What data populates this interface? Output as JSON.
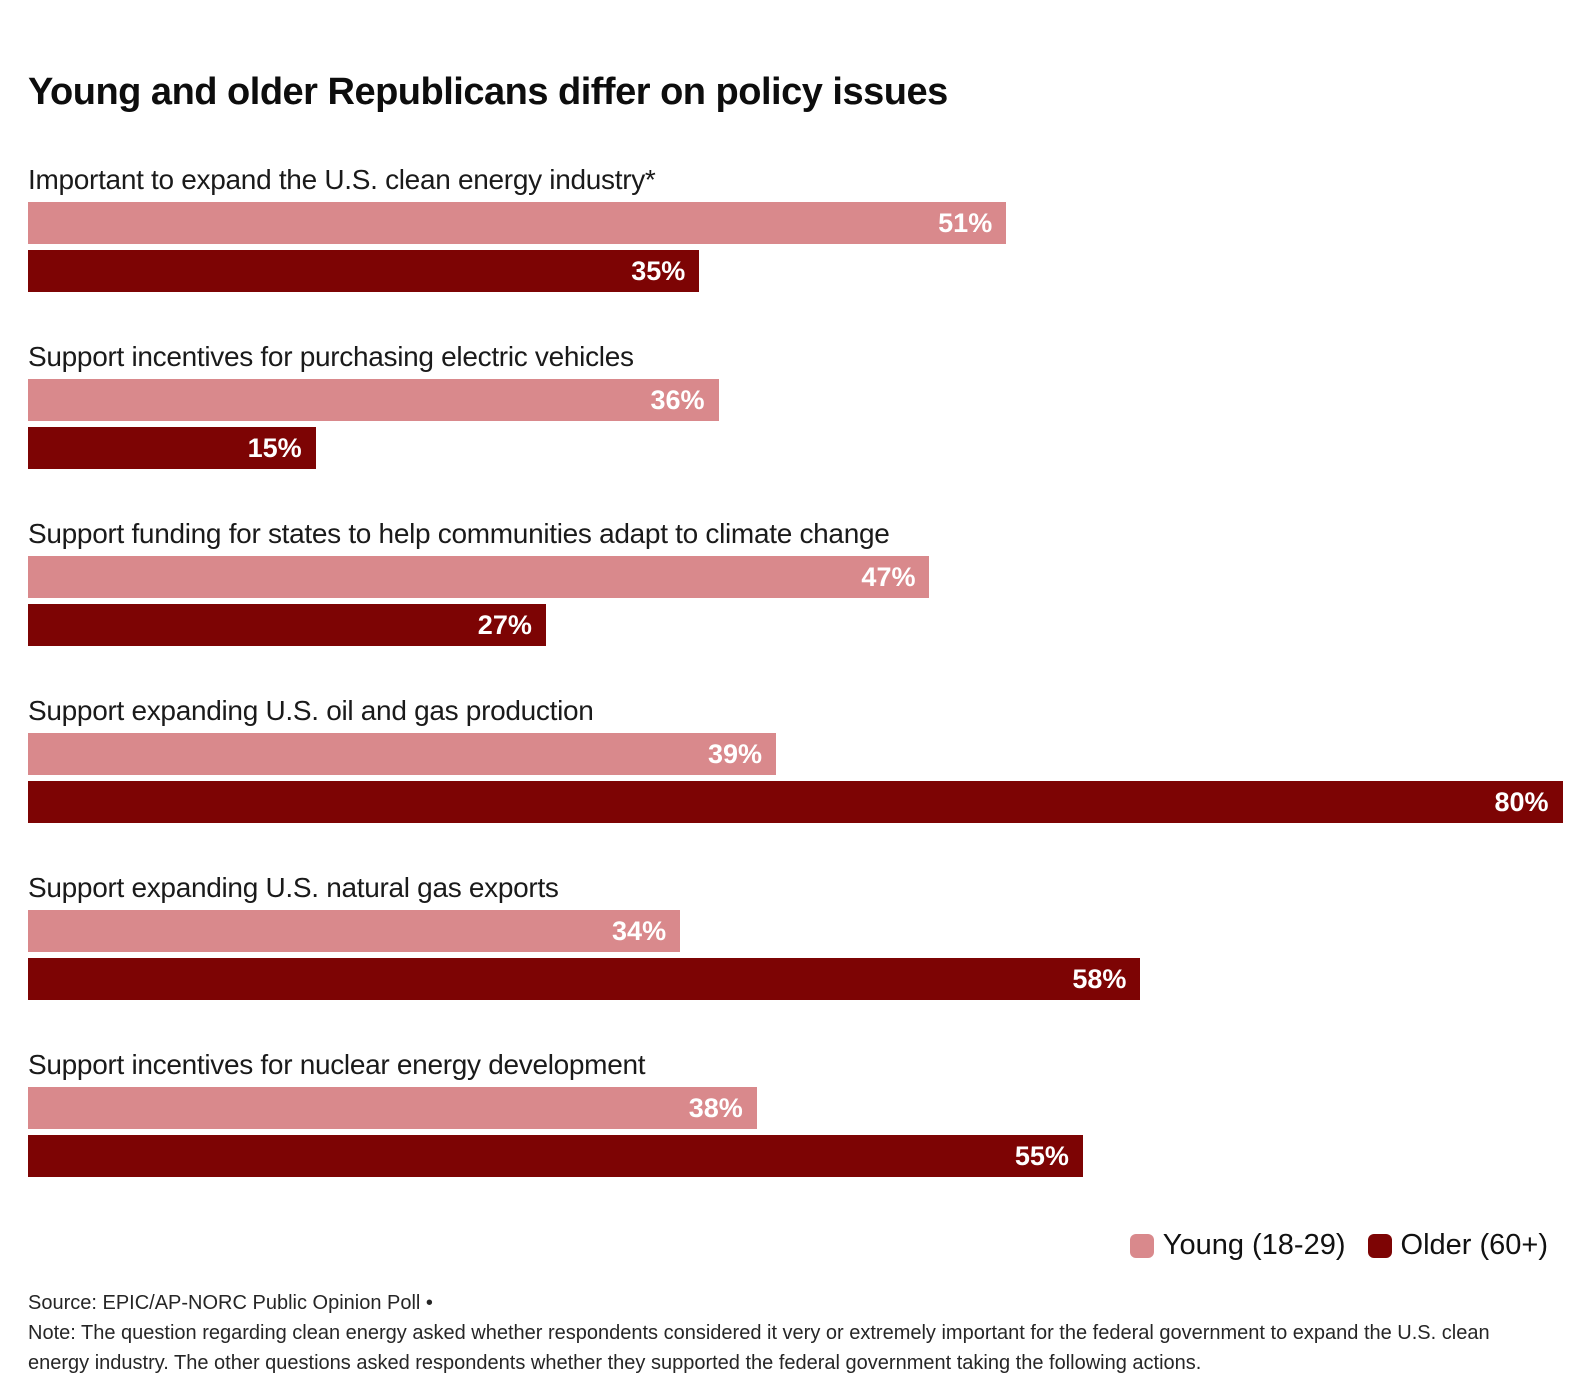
{
  "title": "Young and older Republicans differ on policy issues",
  "colors": {
    "young": "#d9898c",
    "older": "#7d0404",
    "title_text": "#0d0d0d",
    "category_text": "#1a1a1a",
    "value_text": "#ffffff",
    "footer_text": "#262626",
    "background": "#ffffff"
  },
  "legend": {
    "items": [
      {
        "label": "Young (18-29)",
        "color": "#d9898c"
      },
      {
        "label": "Older (60+)",
        "color": "#7d0404"
      }
    ]
  },
  "footer": {
    "source": "Source: EPIC/AP-NORC Public Opinion Poll •",
    "note": "Note: The question regarding clean energy asked whether respondents considered it very or extremely important for the federal government to expand the U.S. clean energy industry. The other questions asked respondents whether they supported the federal government taking the following actions."
  },
  "chart_data": {
    "type": "bar",
    "orientation": "horizontal",
    "unit": "%",
    "title": "Young and older Republicans differ on policy issues",
    "value_axis_max_shown": 80,
    "grid": false,
    "legend_position": "bottom-right",
    "value_labels": "inside-end",
    "categories": [
      "Important to expand the U.S. clean energy industry*",
      "Support incentives for purchasing electric vehicles",
      "Support funding for states to help communities adapt to climate change",
      "Support expanding U.S. oil and gas production",
      "Support expanding U.S. natural gas exports",
      "Support incentives for nuclear energy development"
    ],
    "series": [
      {
        "name": "Young (18-29)",
        "color": "#d9898c",
        "values": [
          51,
          36,
          47,
          39,
          34,
          38
        ]
      },
      {
        "name": "Older (60+)",
        "color": "#7d0404",
        "values": [
          35,
          15,
          27,
          80,
          58,
          55
        ]
      }
    ],
    "groups": [
      {
        "label": "Important to expand the U.S. clean energy industry*",
        "young": 51,
        "older": 35
      },
      {
        "label": "Support incentives for purchasing electric vehicles",
        "young": 36,
        "older": 15
      },
      {
        "label": "Support funding for states to help communities adapt to climate change",
        "young": 47,
        "older": 27
      },
      {
        "label": "Support expanding U.S. oil and gas production",
        "young": 39,
        "older": 80
      },
      {
        "label": "Support expanding U.S. natural gas exports",
        "young": 34,
        "older": 58
      },
      {
        "label": "Support incentives for nuclear energy development",
        "young": 38,
        "older": 55
      }
    ]
  }
}
